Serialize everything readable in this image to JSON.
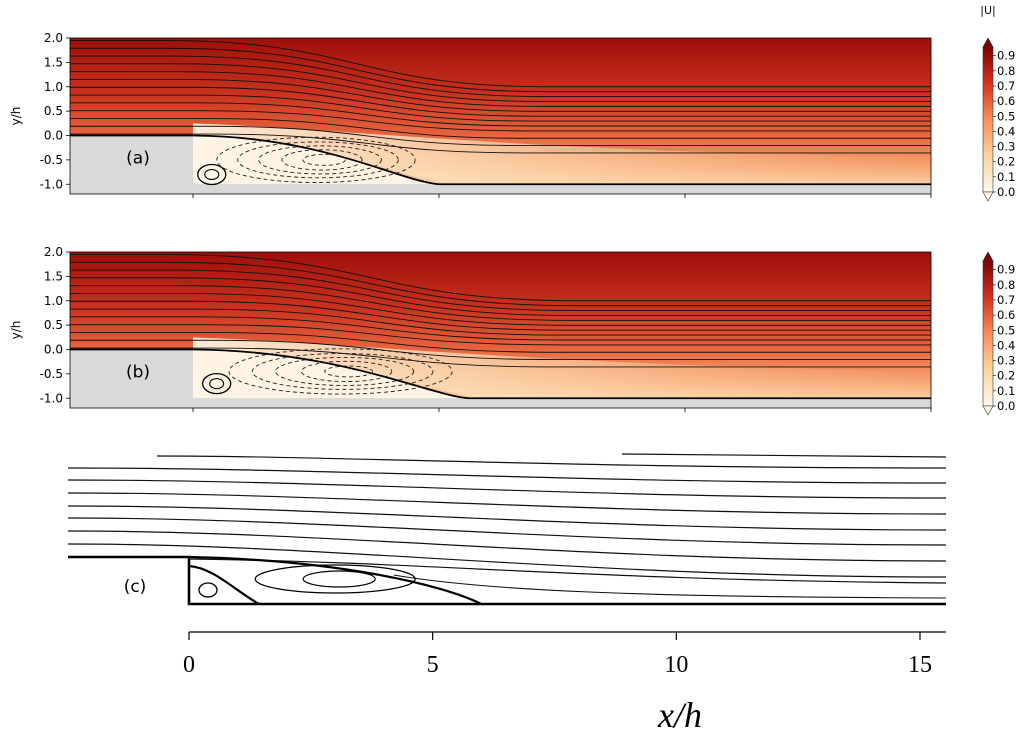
{
  "chart_data": [
    {
      "type": "heatmap",
      "panel_label": "(a)",
      "ylabel": "y/h",
      "ylim": [
        -1.2,
        2.0
      ],
      "xlim": [
        -2.5,
        15.0
      ],
      "yticks": [
        "2.0",
        "1.5",
        "1.0",
        "0.5",
        "0.0",
        "-0.5",
        "-1.0"
      ],
      "ytick_values": [
        2.0,
        1.5,
        1.0,
        0.5,
        0.0,
        -0.5,
        -1.0
      ],
      "colorbar": {
        "label": "|U|",
        "range": [
          0.0,
          0.9
        ],
        "ticks": [
          "0.9",
          "0.8",
          "0.7",
          "0.6",
          "0.5",
          "0.4",
          "0.3",
          "0.2",
          "0.1",
          "0.0"
        ],
        "tick_values": [
          0.9,
          0.8,
          0.7,
          0.6,
          0.5,
          0.4,
          0.3,
          0.2,
          0.1,
          0.0
        ],
        "colormap": [
          "#fff7ec",
          "#fdd49e",
          "#fc8d59",
          "#d7301f",
          "#7f0000"
        ]
      },
      "step": {
        "x": 0.0,
        "height": 1.0
      },
      "reattachment_x": 4.8,
      "recirculation_center": [
        2.5,
        -0.5
      ],
      "secondary_vortex_center": [
        0.3,
        -0.8
      ]
    },
    {
      "type": "heatmap",
      "panel_label": "(b)",
      "ylabel": "y/h",
      "ylim": [
        -1.2,
        2.0
      ],
      "xlim": [
        -2.5,
        15.0
      ],
      "yticks": [
        "2.0",
        "1.5",
        "1.0",
        "0.5",
        "0.0",
        "-0.5",
        "-1.0"
      ],
      "ytick_values": [
        2.0,
        1.5,
        1.0,
        0.5,
        0.0,
        -0.5,
        -1.0
      ],
      "colorbar": {
        "label": "",
        "range": [
          0.0,
          0.9
        ],
        "ticks": [
          "0.9",
          "0.8",
          "0.7",
          "0.6",
          "0.5",
          "0.4",
          "0.3",
          "0.2",
          "0.1",
          "0.0"
        ],
        "tick_values": [
          0.9,
          0.8,
          0.7,
          0.6,
          0.5,
          0.4,
          0.3,
          0.2,
          0.1,
          0.0
        ],
        "colormap": [
          "#fff7ec",
          "#fdd49e",
          "#fc8d59",
          "#d7301f",
          "#7f0000"
        ]
      },
      "step": {
        "x": 0.0,
        "height": 1.0
      },
      "reattachment_x": 5.4,
      "recirculation_center": [
        3.0,
        -0.45
      ],
      "secondary_vortex_center": [
        0.4,
        -0.7
      ]
    },
    {
      "type": "line",
      "panel_label": "(c)",
      "xlabel": "x/h",
      "xlim": [
        -2.5,
        15.5
      ],
      "xticks": [
        "0",
        "5",
        "10",
        "15"
      ],
      "xtick_values": [
        0,
        5,
        10,
        15
      ],
      "reattachment_x": 6.0,
      "recirculation_center": [
        3.0,
        -0.45
      ],
      "secondary_vortex_center": [
        0.4,
        -0.7
      ]
    }
  ]
}
